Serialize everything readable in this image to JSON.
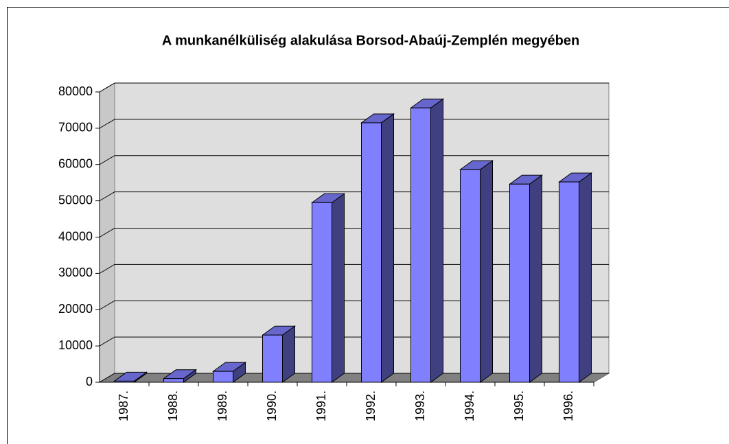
{
  "chart_data": {
    "type": "bar3d",
    "title": "A munkanélküliség alakulása Borsod-Abaúj-Zemplén megyében",
    "categories": [
      "1987.",
      "1988.",
      "1989.",
      "1990.",
      "1991.",
      "1992.",
      "1993.",
      "1994.",
      "1995.",
      "1996."
    ],
    "values": [
      300,
      1000,
      3000,
      13000,
      49500,
      71500,
      75600,
      58600,
      54600,
      55200
    ],
    "color": "#8080ff",
    "ylim": [
      0,
      80000
    ],
    "yticks": [
      0,
      10000,
      20000,
      30000,
      40000,
      50000,
      60000,
      70000,
      80000
    ],
    "grid": true
  }
}
